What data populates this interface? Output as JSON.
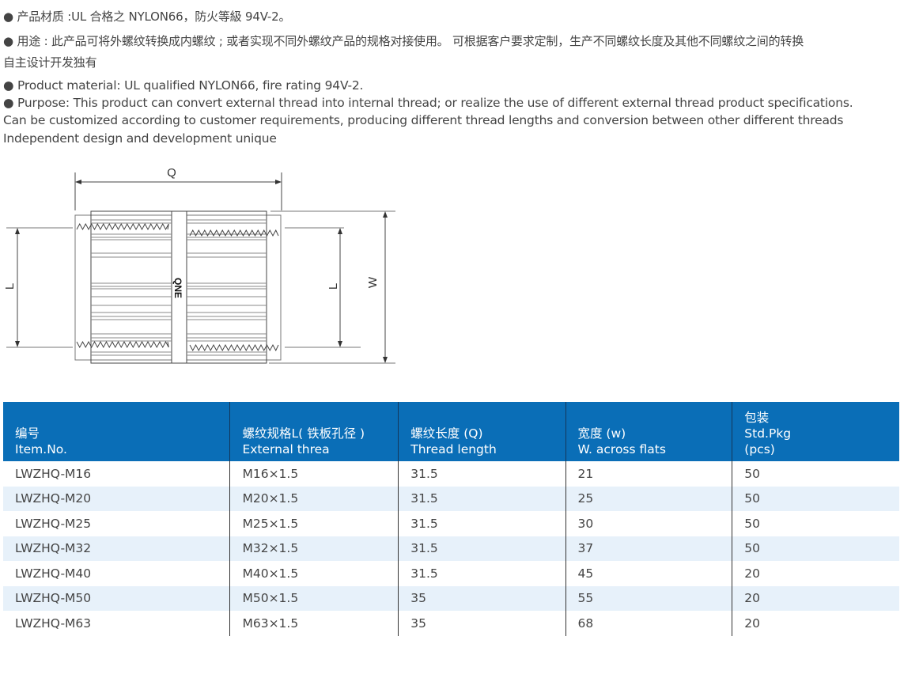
{
  "description": {
    "cn_lines": [
      "● 产品材质 :UL 合格之 NYLON66，防火等級 94V-2。",
      "● 用途 : 此产品可将外螺纹转换成内螺纹 ; 或者实现不同外螺纹产品的规格对接使用。 可根据客户要求定制，生产不同螺纹长度及其他不同螺纹之间的转换",
      "自主设计开发独有"
    ],
    "en_lines": [
      "● Product material: UL qualified NYLON66, fire rating 94V-2.",
      "● Purpose: This product can convert external thread into internal thread; or realize the use of different external thread product specifications.",
      "Can be customized according to customer requirements, producing different thread lengths and conversion between other different threads",
      "Independent design and development unique"
    ]
  },
  "diagram": {
    "labels": {
      "q": "Q",
      "l_left": "L",
      "l_right": "L",
      "w": "W",
      "brand": "QNE"
    }
  },
  "table": {
    "header_color": "#0a6eb7",
    "headers": [
      {
        "cn": "编号",
        "en": "Item.No.",
        "extra": ""
      },
      {
        "cn": "螺纹规格L( 铁板孔径 )",
        "en": "External threa",
        "extra": ""
      },
      {
        "cn": "螺纹长度 (Q)",
        "en": "Thread length",
        "extra": ""
      },
      {
        "cn": "宽度 (w)",
        "en": "W. across flats",
        "extra": ""
      },
      {
        "cn": "包装",
        "en": "Std.Pkg",
        "extra": "(pcs)"
      }
    ],
    "rows": [
      [
        "LWZHQ-M16",
        "M16×1.5",
        "31.5",
        "21",
        "50"
      ],
      [
        "LWZHQ-M20",
        "M20×1.5",
        "31.5",
        "25",
        "50"
      ],
      [
        "LWZHQ-M25",
        "M25×1.5",
        "31.5",
        "30",
        "50"
      ],
      [
        "LWZHQ-M32",
        "M32×1.5",
        "31.5",
        "37",
        "50"
      ],
      [
        "LWZHQ-M40",
        "M40×1.5",
        "31.5",
        "45",
        "20"
      ],
      [
        "LWZHQ-M50",
        "M50×1.5",
        "35",
        "55",
        "20"
      ],
      [
        "LWZHQ-M63",
        "M63×1.5",
        "35",
        "68",
        "20"
      ]
    ]
  }
}
